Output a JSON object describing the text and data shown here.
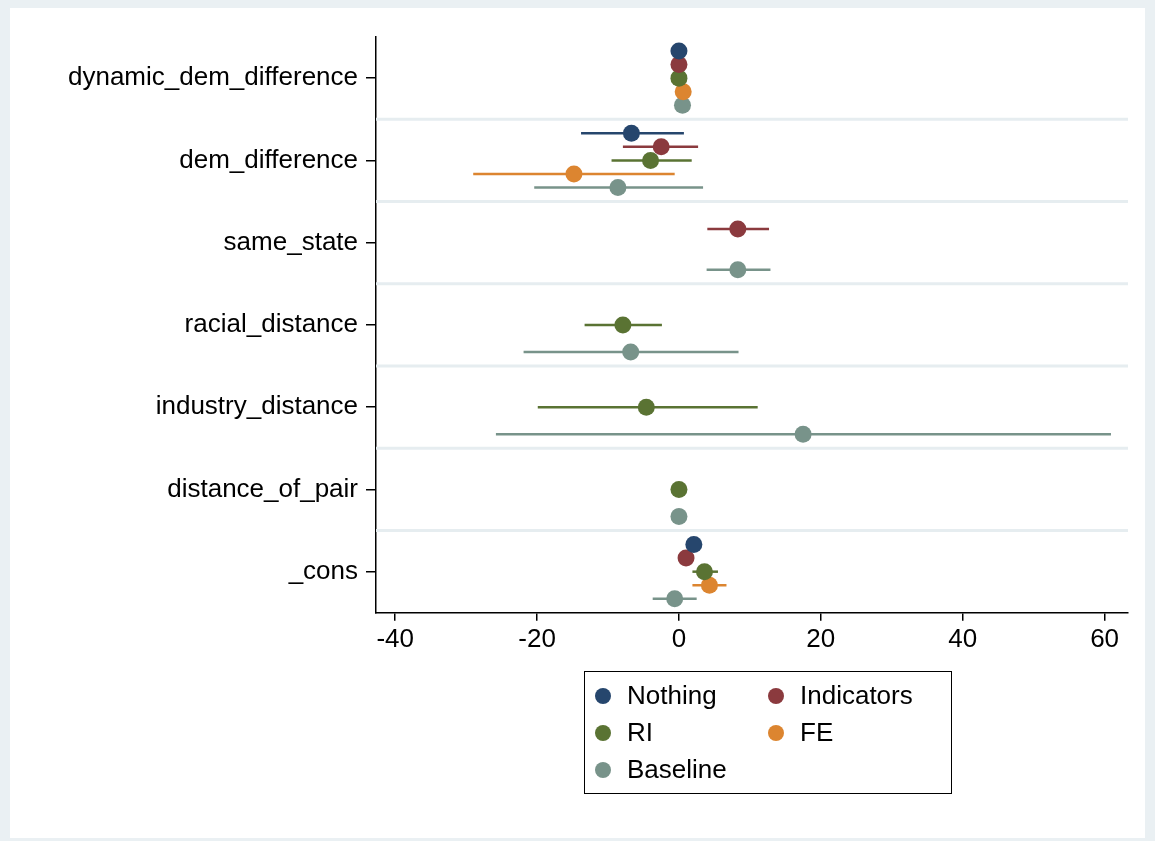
{
  "chart_data": {
    "type": "scatter",
    "orientation": "horizontal",
    "categories": [
      "dynamic_dem_difference",
      "dem_difference",
      "same_state",
      "racial_distance",
      "industry_distance",
      "distance_of_pair",
      "_cons"
    ],
    "xlim": [
      -42.7,
      63.3
    ],
    "xticks": [
      -40,
      -20,
      0,
      20,
      40,
      60
    ],
    "grid": "y",
    "legend": "bottom",
    "marker": "circle",
    "series": [
      {
        "name": "Nothing",
        "color": "#26466d",
        "values": [
          0,
          -6.7,
          null,
          null,
          null,
          null,
          2.1
        ],
        "errors": [
          null,
          [
            -13.8,
            0.7
          ],
          null,
          null,
          null,
          null,
          null
        ]
      },
      {
        "name": "Indicators",
        "color": "#8b3a3e",
        "values": [
          0,
          -2.5,
          8.3,
          null,
          null,
          null,
          1.0
        ],
        "errors": [
          null,
          [
            -7.9,
            2.7
          ],
          [
            4.0,
            12.7
          ],
          null,
          null,
          null,
          null
        ]
      },
      {
        "name": "RI",
        "color": "#5a7333",
        "values": [
          0,
          -4.0,
          null,
          -7.9,
          -4.6,
          0,
          3.6
        ],
        "errors": [
          null,
          [
            -9.5,
            1.8
          ],
          null,
          [
            -13.3,
            -2.4
          ],
          [
            -19.9,
            11.1
          ],
          null,
          [
            1.9,
            5.5
          ]
        ]
      },
      {
        "name": "FE",
        "color": "#dc8530",
        "values": [
          0.6,
          -14.8,
          null,
          null,
          null,
          null,
          4.3
        ],
        "errors": [
          null,
          [
            -29.0,
            -0.6
          ],
          null,
          null,
          null,
          null,
          [
            1.9,
            6.7
          ]
        ]
      },
      {
        "name": "Baseline",
        "color": "#78938a",
        "values": [
          0.5,
          -8.6,
          8.3,
          -6.8,
          17.5,
          0,
          -0.6
        ],
        "errors": [
          null,
          [
            -20.4,
            3.4
          ],
          [
            3.9,
            12.9
          ],
          [
            -21.9,
            8.4
          ],
          [
            -25.8,
            60.9
          ],
          null,
          [
            -3.7,
            2.5
          ]
        ]
      }
    ]
  }
}
